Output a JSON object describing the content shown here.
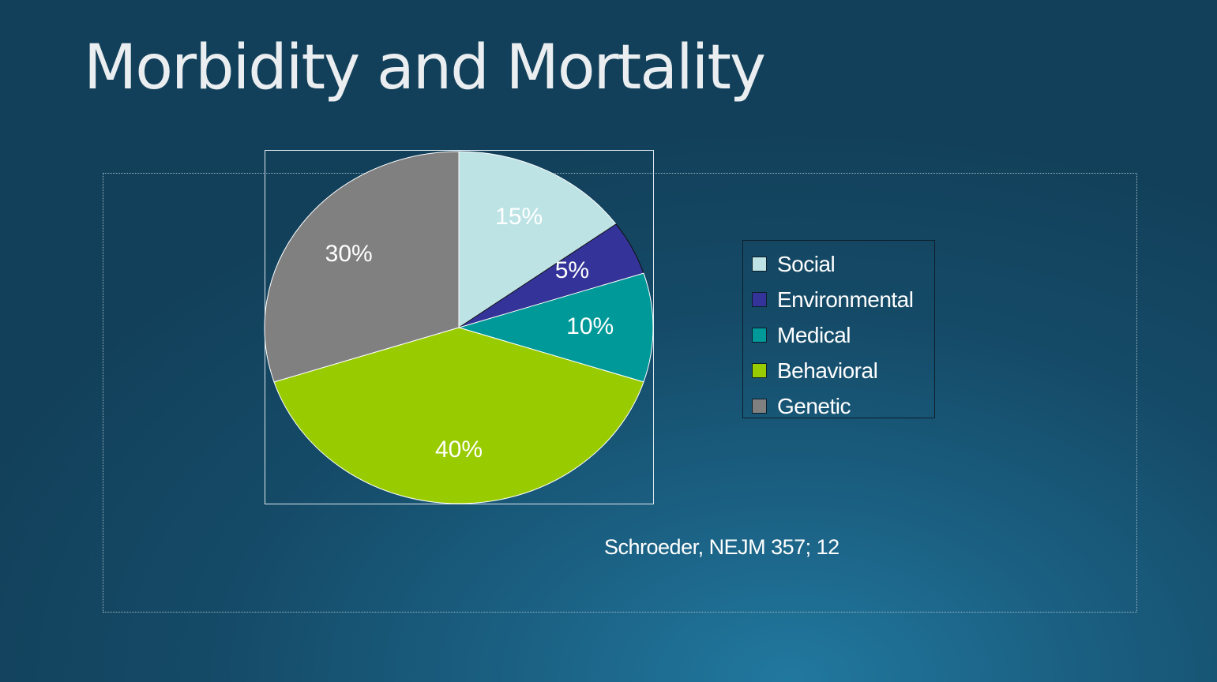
{
  "slide": {
    "title": "Morbidity and Mortality",
    "source": "Schroeder, NEJM 357; 12"
  },
  "chart_data": {
    "type": "pie",
    "categories": [
      "Social",
      "Environmental",
      "Medical",
      "Behavioral",
      "Genetic"
    ],
    "values": [
      15,
      5,
      10,
      40,
      30
    ],
    "data_labels": [
      "15%",
      "5%",
      "10%",
      "40%",
      "30%"
    ],
    "colors": [
      "#bde3e5",
      "#333399",
      "#009999",
      "#99cc00",
      "#808080"
    ],
    "start_angle": "12 o'clock",
    "direction": "clockwise",
    "legend_position": "right"
  },
  "legend": {
    "items": [
      {
        "label": "Social",
        "color": "#bde3e5"
      },
      {
        "label": "Environmental",
        "color": "#333399"
      },
      {
        "label": "Medical",
        "color": "#009999"
      },
      {
        "label": "Behavioral",
        "color": "#99cc00"
      },
      {
        "label": "Genetic",
        "color": "#808080"
      }
    ]
  }
}
